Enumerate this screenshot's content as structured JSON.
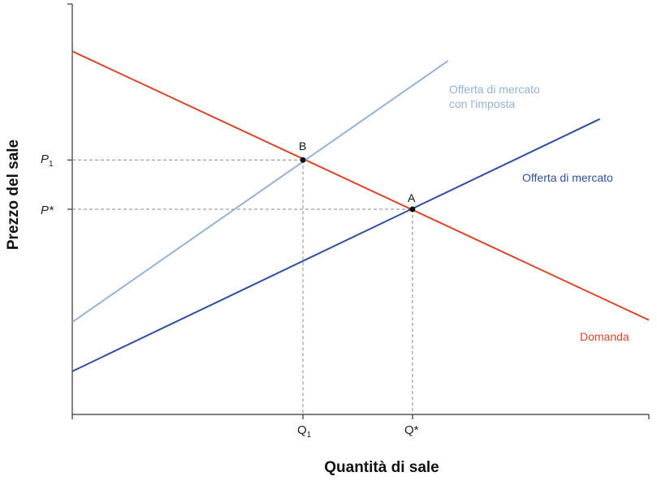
{
  "chart_data": {
    "type": "line",
    "xlabel": "Quantità di sale",
    "ylabel": "Prezzo del sale",
    "x_ticks": [
      {
        "main": "Q",
        "sub": "1",
        "value": 0.4
      },
      {
        "main": "Q*",
        "sub": "",
        "value": 0.59
      }
    ],
    "y_ticks": [
      {
        "main": "P",
        "sub": "1",
        "value": 0.62
      },
      {
        "main": "P*",
        "sub": "",
        "value": 0.5
      }
    ],
    "xlim": [
      0,
      1
    ],
    "ylim": [
      0,
      1
    ],
    "series": [
      {
        "name": "Domanda",
        "color": "#d9452b",
        "points": [
          [
            0,
            0.885
          ],
          [
            1,
            0.23
          ]
        ]
      },
      {
        "name": "Offerta di mercato",
        "color": "#2f4f9e",
        "points": [
          [
            0,
            0.105
          ],
          [
            0.915,
            0.72
          ]
        ]
      },
      {
        "name": "Offerta di mercato con l'imposta",
        "color": "#95b2d8",
        "points": [
          [
            0,
            0.225
          ],
          [
            0.652,
            0.862
          ]
        ]
      }
    ],
    "points": [
      {
        "label": "B",
        "x": 0.4,
        "y": 0.62
      },
      {
        "label": "A",
        "x": 0.59,
        "y": 0.5
      }
    ],
    "grid": false
  },
  "labels": {
    "tax_supply_line1": "Offerta di mercato",
    "tax_supply_line2": "con l'imposta",
    "supply": "Offerta di mercato",
    "demand": "Domanda"
  }
}
